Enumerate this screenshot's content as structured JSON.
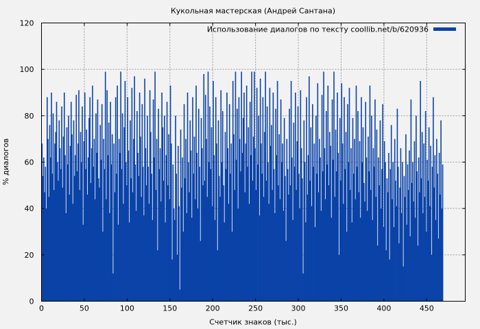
{
  "chart_data": {
    "type": "bar",
    "title": "Кукольная мастерская (Андрей Сантана)",
    "xlabel": "Счетчик знаков (тыс.)",
    "ylabel": "% диалогов",
    "xlim": [
      0,
      495
    ],
    "ylim": [
      0,
      120
    ],
    "xticks": [
      0,
      50,
      100,
      150,
      200,
      250,
      300,
      350,
      400,
      450
    ],
    "yticks": [
      0,
      20,
      40,
      60,
      80,
      100,
      120
    ],
    "grid": true,
    "legend_position": "top-right",
    "series": [
      {
        "name": "Использование диалогов по тексту coollib.net/b/620936",
        "color": "#0a43a8",
        "x_start": 0,
        "x_step": 1,
        "values": [
          68,
          54,
          62,
          47,
          58,
          40,
          88,
          70,
          45,
          76,
          62,
          90,
          55,
          81,
          48,
          68,
          73,
          86,
          60,
          52,
          78,
          66,
          57,
          84,
          49,
          71,
          90,
          63,
          38,
          75,
          59,
          80,
          46,
          67,
          86,
          72,
          42,
          78,
          54,
          63,
          89,
          56,
          68,
          91,
          48,
          73,
          60,
          84,
          33,
          69,
          90,
          57,
          74,
          46,
          62,
          79,
          88,
          51,
          66,
          93,
          58,
          70,
          44,
          81,
          64,
          87,
          53,
          49,
          76,
          61,
          85,
          30,
          70,
          57,
          99,
          44,
          91,
          63,
          77,
          38,
          86,
          59,
          72,
          12,
          68,
          47,
          88,
          55,
          93,
          33,
          70,
          64,
          99,
          57,
          81,
          42,
          75,
          95,
          60,
          50,
          88,
          65,
          34,
          78,
          53,
          92,
          47,
          70,
          97,
          59,
          39,
          82,
          64,
          54,
          90,
          71,
          45,
          85,
          58,
          37,
          96,
          66,
          50,
          80,
          58,
          42,
          91,
          73,
          55,
          35,
          87,
          62,
          99,
          48,
          70,
          22,
          83,
          57,
          66,
          43,
          90,
          75,
          52,
          80,
          34,
          63,
          86,
          50,
          72,
          44,
          93,
          68,
          18,
          59,
          40,
          35,
          80,
          55,
          20,
          67,
          41,
          5,
          74,
          49,
          62,
          30,
          85,
          53,
          70,
          38,
          90,
          60,
          47,
          78,
          65,
          36,
          88,
          55,
          71,
          44,
          93,
          64,
          40,
          83,
          58,
          26,
          79,
          66,
          50,
          98,
          52,
          89,
          70,
          45,
          99,
          60,
          84,
          57,
          75,
          41,
          95,
          63,
          35,
          88,
          68,
          22,
          78,
          54,
          45,
          91,
          60,
          82,
          50,
          34,
          73,
          57,
          90,
          66,
          42,
          85,
          55,
          68,
          30,
          95,
          72,
          48,
          99,
          61,
          83,
          40,
          88,
          70,
          56,
          99,
          64,
          79,
          90,
          47,
          68,
          93,
          58,
          75,
          42,
          86,
          63,
          99,
          52,
          71,
          99,
          66,
          48,
          92,
          59,
          80,
          37,
          96,
          68,
          55,
          88,
          45,
          73,
          99,
          52,
          84,
          60,
          42,
          92,
          67,
          76,
          48,
          90,
          57,
          38,
          83,
          63,
          95,
          50,
          72,
          44,
          87,
          60,
          68,
          39,
          79,
          54,
          26,
          70,
          57,
          46,
          83,
          50,
          95,
          62,
          35,
          77,
          58,
          90,
          48,
          69,
          84,
          55,
          40,
          91,
          66,
          53,
          12,
          78,
          60,
          34,
          88,
          46,
          63,
          97,
          52,
          75,
          41,
          85,
          58,
          68,
          32,
          80,
          55,
          94,
          47,
          70,
          62,
          39,
          89,
          56,
          99,
          66,
          44,
          82,
          59,
          93,
          50,
          73,
          67,
          36,
          87,
          61,
          99,
          45,
          74,
          56,
          90,
          64,
          20,
          79,
          52,
          94,
          68,
          42,
          88,
          57,
          73,
          30,
          85,
          60,
          92,
          48,
          66,
          34,
          79,
          55,
          70,
          44,
          93,
          58,
          82,
          47,
          69,
          36,
          88,
          60,
          75,
          51,
          43,
          86,
          62,
          39,
          71,
          56,
          93,
          48,
          80,
          35,
          66,
          58,
          87,
          45,
          74,
          24,
          62,
          50,
          78,
          40,
          57,
          85,
          32,
          69,
          60,
          22,
          53,
          47,
          64,
          18,
          57,
          76,
          44,
          60,
          32,
          70,
          52,
          41,
          83,
          58,
          25,
          49,
          66,
          38,
          60,
          15,
          54,
          45,
          72,
          33,
          59,
          48,
          65,
          28,
          87,
          51,
          60,
          43,
          69,
          36,
          80,
          56,
          24,
          62,
          47,
          95,
          53,
          73,
          38,
          68,
          45,
          82,
          30,
          61,
          52,
          75,
          41,
          67,
          20,
          58,
          88,
          49,
          63,
          35,
          70,
          55,
          27,
          64,
          46,
          78,
          40,
          59
        ]
      }
    ]
  }
}
